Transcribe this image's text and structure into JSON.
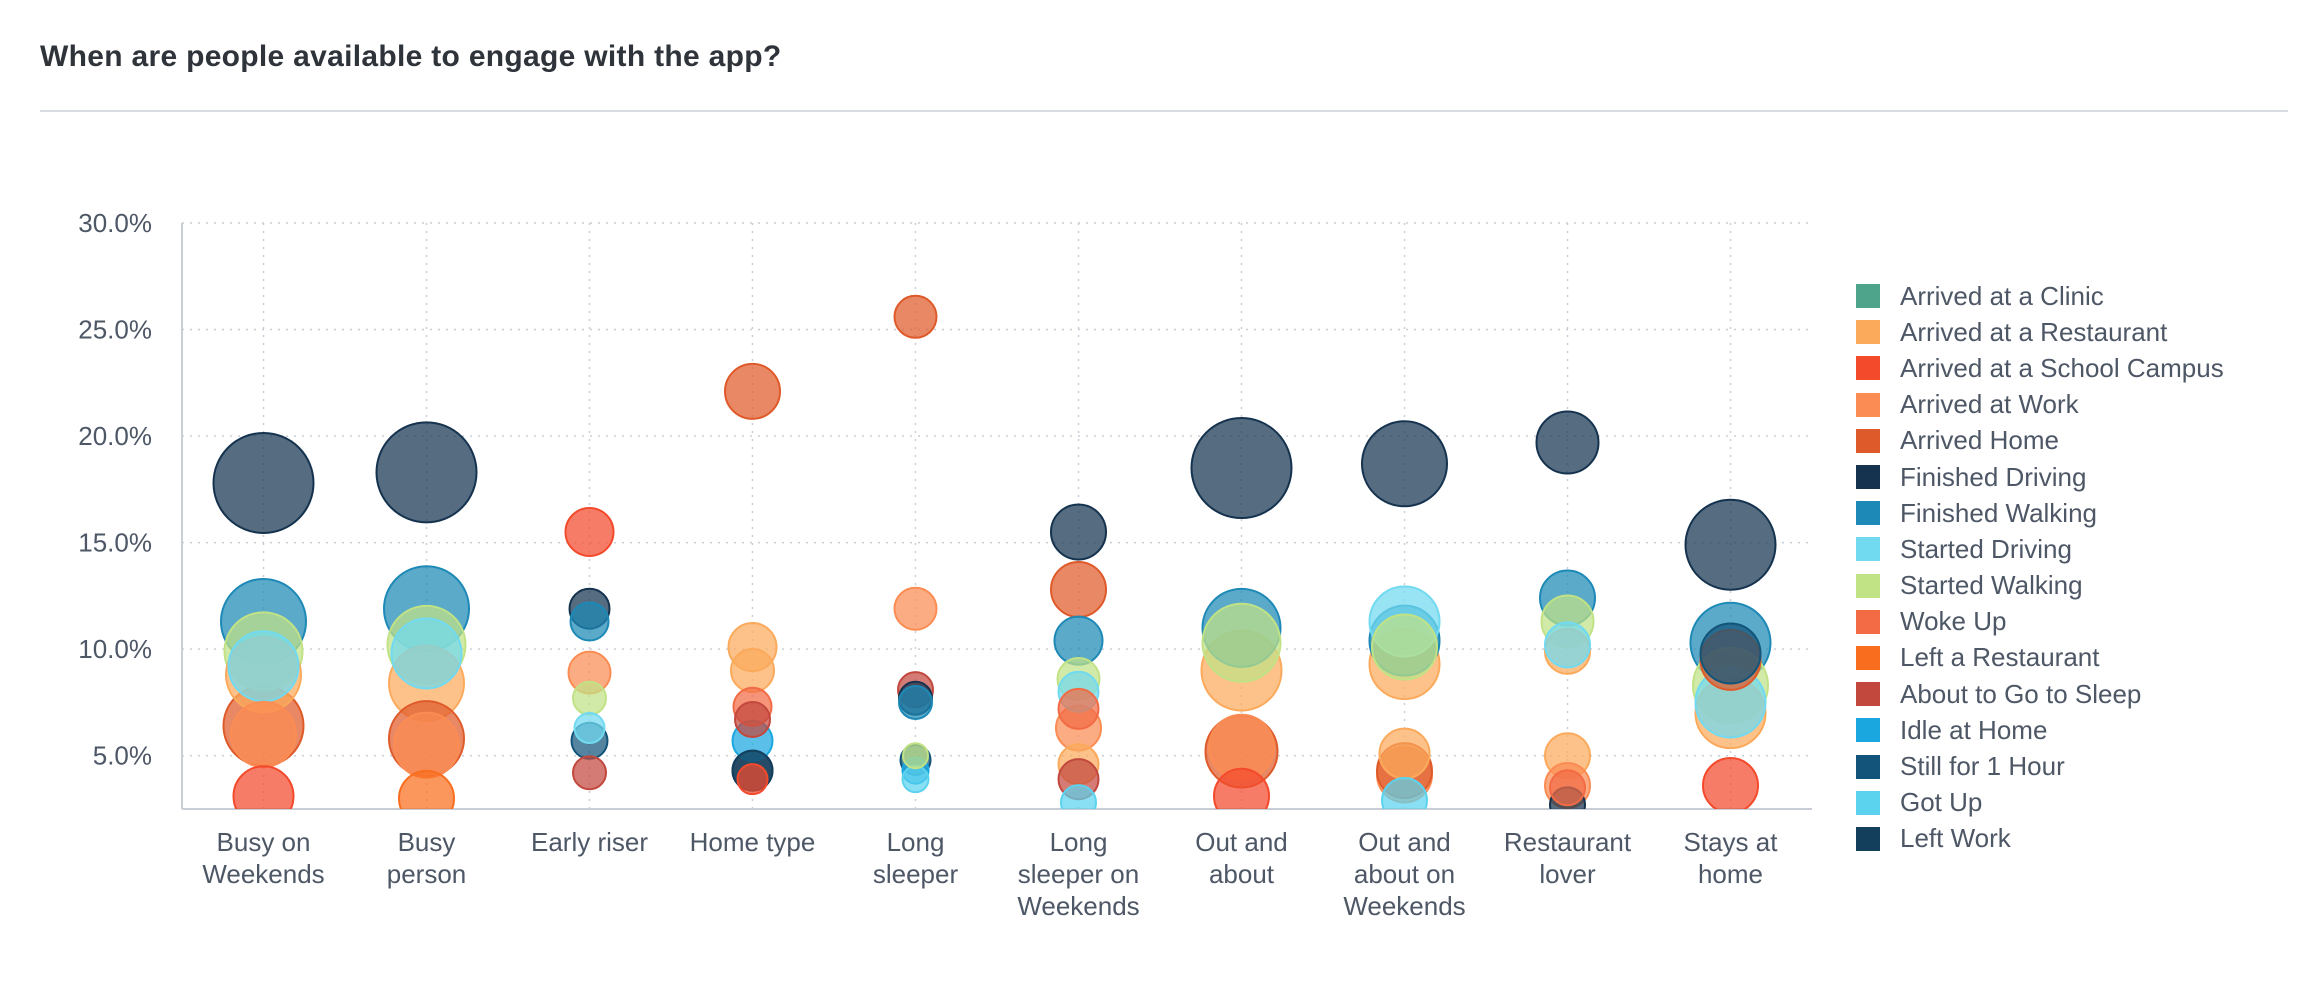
{
  "title": "When are people available to engage with the app?",
  "chart_data": {
    "type": "bubble",
    "title": "When are people available to engage with the app?",
    "xlabel": "",
    "ylabel": "",
    "ylim": [
      2.5,
      30
    ],
    "y_ticks": [
      "30.0%",
      "25.0%",
      "20.0%",
      "15.0%",
      "10.0%",
      "5.0%"
    ],
    "y_tick_values": [
      30,
      25,
      20,
      15,
      10,
      5
    ],
    "grid": "dotted, both axes",
    "legend_position": "right",
    "categories": [
      [
        "Busy on",
        "Weekends"
      ],
      [
        "Busy",
        "person"
      ],
      [
        "Early riser"
      ],
      [
        "Home type"
      ],
      [
        "Long",
        "sleeper"
      ],
      [
        "Long",
        "sleeper on",
        "Weekends"
      ],
      [
        "Out and",
        "about"
      ],
      [
        "Out and",
        "about on",
        "Weekends"
      ],
      [
        "Restaurant",
        "lover"
      ],
      [
        "Stays at",
        "home"
      ]
    ],
    "series": [
      {
        "name": "Arrived at a Clinic",
        "color": "#4ea48b",
        "points": []
      },
      {
        "name": "Arrived at a Restaurant",
        "color": "#fbaa5c",
        "points": [
          {
            "cat": 0,
            "y": 8.8,
            "size": 0.75
          },
          {
            "cat": 1,
            "y": 8.4,
            "size": 0.75
          },
          {
            "cat": 3,
            "y": 10.1,
            "size": 0.48
          },
          {
            "cat": 3,
            "y": 9.0,
            "size": 0.43
          },
          {
            "cat": 5,
            "y": 4.6,
            "size": 0.4
          },
          {
            "cat": 6,
            "y": 9.0,
            "size": 0.8
          },
          {
            "cat": 7,
            "y": 9.3,
            "size": 0.7
          },
          {
            "cat": 7,
            "y": 5.1,
            "size": 0.5
          },
          {
            "cat": 8,
            "y": 5.0,
            "size": 0.45
          },
          {
            "cat": 8,
            "y": 9.9,
            "size": 0.45
          },
          {
            "cat": 9,
            "y": 7.0,
            "size": 0.7
          }
        ]
      },
      {
        "name": "Arrived at a School Campus",
        "color": "#f44a2c",
        "points": [
          {
            "cat": 0,
            "y": 3.1,
            "size": 0.6
          },
          {
            "cat": 2,
            "y": 15.5,
            "size": 0.48
          },
          {
            "cat": 3,
            "y": 3.9,
            "size": 0.3
          },
          {
            "cat": 6,
            "y": 3.1,
            "size": 0.55
          },
          {
            "cat": 9,
            "y": 3.6,
            "size": 0.55
          }
        ]
      },
      {
        "name": "Arrived at Work",
        "color": "#fb8c53",
        "points": [
          {
            "cat": 0,
            "y": 6.0,
            "size": 0.65
          },
          {
            "cat": 1,
            "y": 5.5,
            "size": 0.65
          },
          {
            "cat": 2,
            "y": 8.9,
            "size": 0.42
          },
          {
            "cat": 4,
            "y": 11.9,
            "size": 0.42
          },
          {
            "cat": 5,
            "y": 6.3,
            "size": 0.45
          },
          {
            "cat": 6,
            "y": 5.4,
            "size": 0.65
          },
          {
            "cat": 7,
            "y": 4.1,
            "size": 0.55
          },
          {
            "cat": 8,
            "y": 3.6,
            "size": 0.45
          }
        ]
      },
      {
        "name": "Arrived Home",
        "color": "#df5a2a",
        "points": [
          {
            "cat": 0,
            "y": 6.4,
            "size": 0.8
          },
          {
            "cat": 1,
            "y": 5.8,
            "size": 0.75
          },
          {
            "cat": 3,
            "y": 22.1,
            "size": 0.55
          },
          {
            "cat": 4,
            "y": 25.6,
            "size": 0.42
          },
          {
            "cat": 5,
            "y": 12.8,
            "size": 0.55
          },
          {
            "cat": 6,
            "y": 5.2,
            "size": 0.72
          },
          {
            "cat": 7,
            "y": 4.3,
            "size": 0.55
          },
          {
            "cat": 9,
            "y": 9.5,
            "size": 0.6
          }
        ]
      },
      {
        "name": "Finished Driving",
        "color": "#15334f",
        "points": [
          {
            "cat": 0,
            "y": 17.8,
            "size": 1.0
          },
          {
            "cat": 1,
            "y": 18.3,
            "size": 1.0
          },
          {
            "cat": 2,
            "y": 11.9,
            "size": 0.4
          },
          {
            "cat": 3,
            "y": 4.3,
            "size": 0.4
          },
          {
            "cat": 4,
            "y": 7.7,
            "size": 0.33
          },
          {
            "cat": 5,
            "y": 15.5,
            "size": 0.55
          },
          {
            "cat": 6,
            "y": 18.5,
            "size": 1.0
          },
          {
            "cat": 7,
            "y": 18.7,
            "size": 0.85
          },
          {
            "cat": 8,
            "y": 19.7,
            "size": 0.62
          },
          {
            "cat": 8,
            "y": 2.7,
            "size": 0.35
          },
          {
            "cat": 9,
            "y": 14.9,
            "size": 0.9
          }
        ]
      },
      {
        "name": "Finished Walking",
        "color": "#1d89b6",
        "points": [
          {
            "cat": 0,
            "y": 11.3,
            "size": 0.85
          },
          {
            "cat": 1,
            "y": 11.9,
            "size": 0.85
          },
          {
            "cat": 2,
            "y": 11.3,
            "size": 0.38
          },
          {
            "cat": 4,
            "y": 7.5,
            "size": 0.33
          },
          {
            "cat": 5,
            "y": 10.4,
            "size": 0.48
          },
          {
            "cat": 6,
            "y": 11.0,
            "size": 0.78
          },
          {
            "cat": 7,
            "y": 10.4,
            "size": 0.7
          },
          {
            "cat": 8,
            "y": 12.4,
            "size": 0.55
          },
          {
            "cat": 9,
            "y": 10.3,
            "size": 0.8
          }
        ]
      },
      {
        "name": "Started Driving",
        "color": "#72daf0",
        "points": [
          {
            "cat": 0,
            "y": 9.2,
            "size": 0.7
          },
          {
            "cat": 1,
            "y": 9.8,
            "size": 0.7
          },
          {
            "cat": 2,
            "y": 6.3,
            "size": 0.3
          },
          {
            "cat": 5,
            "y": 8.0,
            "size": 0.4
          },
          {
            "cat": 7,
            "y": 11.3,
            "size": 0.7
          },
          {
            "cat": 8,
            "y": 10.2,
            "size": 0.45
          },
          {
            "cat": 9,
            "y": 7.5,
            "size": 0.7
          }
        ]
      },
      {
        "name": "Started Walking",
        "color": "#c1e285",
        "points": [
          {
            "cat": 0,
            "y": 9.9,
            "size": 0.78
          },
          {
            "cat": 1,
            "y": 10.2,
            "size": 0.78
          },
          {
            "cat": 2,
            "y": 7.7,
            "size": 0.33
          },
          {
            "cat": 4,
            "y": 5.0,
            "size": 0.25
          },
          {
            "cat": 5,
            "y": 8.6,
            "size": 0.42
          },
          {
            "cat": 6,
            "y": 10.3,
            "size": 0.78
          },
          {
            "cat": 7,
            "y": 10.1,
            "size": 0.65
          },
          {
            "cat": 8,
            "y": 11.3,
            "size": 0.52
          },
          {
            "cat": 9,
            "y": 8.3,
            "size": 0.75
          }
        ]
      },
      {
        "name": "Woke Up",
        "color": "#f26b45",
        "points": [
          {
            "cat": 3,
            "y": 7.3,
            "size": 0.38
          },
          {
            "cat": 5,
            "y": 7.2,
            "size": 0.4
          },
          {
            "cat": 8,
            "y": 3.5,
            "size": 0.35
          }
        ]
      },
      {
        "name": "Left a Restaurant",
        "color": "#f96e1e",
        "points": [
          {
            "cat": 1,
            "y": 3.0,
            "size": 0.55
          }
        ]
      },
      {
        "name": "About to Go to Sleep",
        "color": "#c2483e",
        "points": [
          {
            "cat": 2,
            "y": 4.2,
            "size": 0.33
          },
          {
            "cat": 3,
            "y": 6.7,
            "size": 0.35
          },
          {
            "cat": 4,
            "y": 8.1,
            "size": 0.35
          },
          {
            "cat": 5,
            "y": 3.9,
            "size": 0.4
          }
        ]
      },
      {
        "name": "Idle at Home",
        "color": "#1aa7e0",
        "points": [
          {
            "cat": 3,
            "y": 5.7,
            "size": 0.4
          },
          {
            "cat": 4,
            "y": 4.3,
            "size": 0.26
          }
        ]
      },
      {
        "name": "Still for 1 Hour",
        "color": "#12547a",
        "points": [
          {
            "cat": 2,
            "y": 5.7,
            "size": 0.36
          },
          {
            "cat": 4,
            "y": 4.8,
            "size": 0.3
          },
          {
            "cat": 9,
            "y": 9.8,
            "size": 0.6
          }
        ]
      },
      {
        "name": "Got Up",
        "color": "#5cd3ee",
        "points": [
          {
            "cat": 4,
            "y": 3.9,
            "size": 0.26
          },
          {
            "cat": 5,
            "y": 2.8,
            "size": 0.35
          },
          {
            "cat": 7,
            "y": 2.9,
            "size": 0.45
          }
        ]
      },
      {
        "name": "Left Work",
        "color": "#133e5c",
        "points": [
          {
            "cat": 3,
            "y": 4.3,
            "size": 0.4
          }
        ]
      }
    ]
  }
}
